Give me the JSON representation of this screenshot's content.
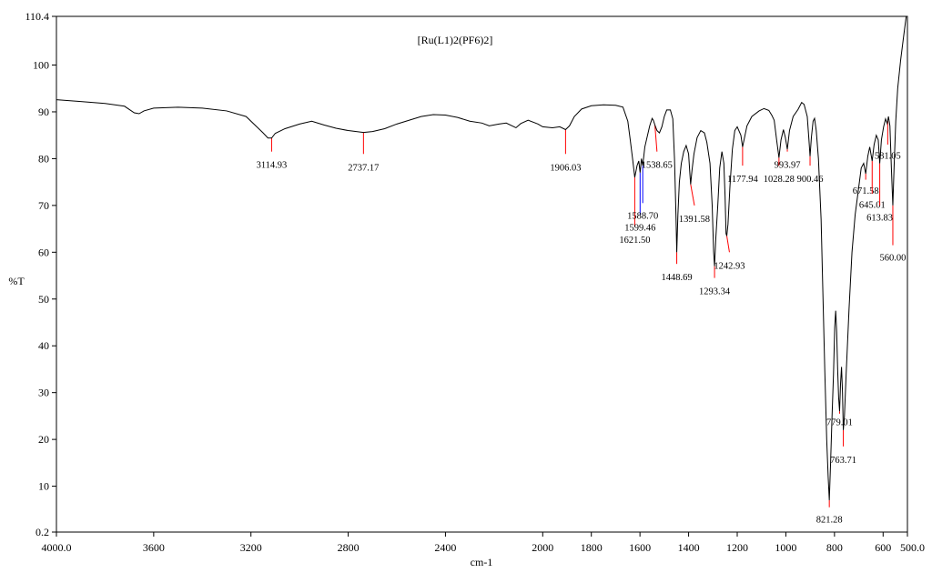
{
  "chart_data": {
    "type": "line",
    "title": "[Ru(L1)2(PF6)2]",
    "xlabel": "cm-1",
    "ylabel": "%T",
    "xlim": [
      4000.0,
      500.0
    ],
    "ylim": [
      0.2,
      110.4
    ],
    "x_reversed": true,
    "grid": false,
    "x_ticks": [
      {
        "value": 4000,
        "label": "4000.0"
      },
      {
        "value": 3600,
        "label": "3600"
      },
      {
        "value": 3200,
        "label": "3200"
      },
      {
        "value": 2800,
        "label": "2800"
      },
      {
        "value": 2400,
        "label": "2400"
      },
      {
        "value": 2000,
        "label": "2000"
      },
      {
        "value": 1800,
        "label": "1800"
      },
      {
        "value": 1600,
        "label": "1600"
      },
      {
        "value": 1400,
        "label": "1400"
      },
      {
        "value": 1200,
        "label": "1200"
      },
      {
        "value": 1000,
        "label": "1000"
      },
      {
        "value": 800,
        "label": "800"
      },
      {
        "value": 600,
        "label": "600"
      },
      {
        "value": 500,
        "label": "500.0"
      }
    ],
    "y_ticks": [
      {
        "value": 0.2,
        "label": "0.2"
      },
      {
        "value": 10,
        "label": "10"
      },
      {
        "value": 20,
        "label": "20"
      },
      {
        "value": 30,
        "label": "30"
      },
      {
        "value": 40,
        "label": "40"
      },
      {
        "value": 50,
        "label": "50"
      },
      {
        "value": 60,
        "label": "60"
      },
      {
        "value": 70,
        "label": "70"
      },
      {
        "value": 80,
        "label": "80"
      },
      {
        "value": 90,
        "label": "90"
      },
      {
        "value": 100,
        "label": "100"
      },
      {
        "value": 110.4,
        "label": "110.4"
      }
    ],
    "series": [
      {
        "color": "#000000",
        "points": [
          [
            4000,
            92.6
          ],
          [
            3900,
            92.2
          ],
          [
            3800,
            91.8
          ],
          [
            3720,
            91.2
          ],
          [
            3680,
            89.8
          ],
          [
            3660,
            89.6
          ],
          [
            3640,
            90.2
          ],
          [
            3600,
            90.8
          ],
          [
            3500,
            91.0
          ],
          [
            3400,
            90.8
          ],
          [
            3300,
            90.2
          ],
          [
            3220,
            89.0
          ],
          [
            3180,
            87.0
          ],
          [
            3150,
            85.5
          ],
          [
            3130,
            84.4
          ],
          [
            3114.93,
            84.4
          ],
          [
            3100,
            85.4
          ],
          [
            3060,
            86.4
          ],
          [
            3000,
            87.4
          ],
          [
            2950,
            88.0
          ],
          [
            2900,
            87.2
          ],
          [
            2850,
            86.5
          ],
          [
            2800,
            86.0
          ],
          [
            2737.17,
            85.6
          ],
          [
            2700,
            85.8
          ],
          [
            2650,
            86.4
          ],
          [
            2600,
            87.4
          ],
          [
            2550,
            88.2
          ],
          [
            2500,
            89.0
          ],
          [
            2450,
            89.4
          ],
          [
            2400,
            89.3
          ],
          [
            2350,
            88.8
          ],
          [
            2300,
            88.0
          ],
          [
            2250,
            87.6
          ],
          [
            2220,
            87.0
          ],
          [
            2180,
            87.4
          ],
          [
            2150,
            87.6
          ],
          [
            2110,
            86.6
          ],
          [
            2090,
            87.5
          ],
          [
            2060,
            88.2
          ],
          [
            2020,
            87.4
          ],
          [
            2000,
            86.8
          ],
          [
            1960,
            86.6
          ],
          [
            1930,
            86.8
          ],
          [
            1906.03,
            86.2
          ],
          [
            1890,
            87.0
          ],
          [
            1870,
            89.0
          ],
          [
            1840,
            90.6
          ],
          [
            1800,
            91.3
          ],
          [
            1750,
            91.5
          ],
          [
            1700,
            91.4
          ],
          [
            1670,
            91.0
          ],
          [
            1650,
            88.0
          ],
          [
            1640,
            84.0
          ],
          [
            1630,
            79.8
          ],
          [
            1621.5,
            76.0
          ],
          [
            1612,
            78.5
          ],
          [
            1605,
            79.5
          ],
          [
            1599.46,
            77.0
          ],
          [
            1594,
            80.0
          ],
          [
            1588.7,
            78.5
          ],
          [
            1580,
            82.5
          ],
          [
            1560,
            87.0
          ],
          [
            1550,
            88.6
          ],
          [
            1545,
            88.2
          ],
          [
            1538.65,
            87.2
          ],
          [
            1530,
            86.0
          ],
          [
            1520,
            85.5
          ],
          [
            1510,
            86.8
          ],
          [
            1500,
            89.0
          ],
          [
            1490,
            90.4
          ],
          [
            1475,
            90.4
          ],
          [
            1465,
            88.5
          ],
          [
            1458,
            80.0
          ],
          [
            1452,
            68.0
          ],
          [
            1448.69,
            60.0
          ],
          [
            1444,
            68.0
          ],
          [
            1438,
            75.0
          ],
          [
            1430,
            79.0
          ],
          [
            1420,
            81.5
          ],
          [
            1410,
            82.8
          ],
          [
            1400,
            81.0
          ],
          [
            1395,
            77.0
          ],
          [
            1391.58,
            74.5
          ],
          [
            1386,
            77.5
          ],
          [
            1378,
            81.0
          ],
          [
            1365,
            84.5
          ],
          [
            1350,
            86.0
          ],
          [
            1335,
            85.5
          ],
          [
            1325,
            83.5
          ],
          [
            1312,
            79.0
          ],
          [
            1303,
            70.0
          ],
          [
            1297,
            60.0
          ],
          [
            1293.34,
            57.0
          ],
          [
            1288,
            63.0
          ],
          [
            1280,
            70.0
          ],
          [
            1272,
            78.0
          ],
          [
            1263,
            81.5
          ],
          [
            1255,
            79.0
          ],
          [
            1250,
            72.0
          ],
          [
            1246,
            64.0
          ],
          [
            1242.93,
            63.5
          ],
          [
            1238,
            66.0
          ],
          [
            1230,
            74.0
          ],
          [
            1220,
            82.0
          ],
          [
            1210,
            86.0
          ],
          [
            1200,
            86.8
          ],
          [
            1185,
            85.0
          ],
          [
            1177.94,
            82.5
          ],
          [
            1172,
            84.0
          ],
          [
            1160,
            87.0
          ],
          [
            1140,
            89.0
          ],
          [
            1110,
            90.2
          ],
          [
            1090,
            90.7
          ],
          [
            1070,
            90.3
          ],
          [
            1058,
            89.3
          ],
          [
            1048,
            88.2
          ],
          [
            1038,
            84.0
          ],
          [
            1028.28,
            80.2
          ],
          [
            1020,
            84.0
          ],
          [
            1010,
            86.2
          ],
          [
            1002,
            84.5
          ],
          [
            993.97,
            82.0
          ],
          [
            985,
            86.0
          ],
          [
            970,
            89.0
          ],
          [
            950,
            90.5
          ],
          [
            935,
            92.0
          ],
          [
            925,
            91.6
          ],
          [
            912,
            89.0
          ],
          [
            905,
            84.0
          ],
          [
            900.46,
            80.5
          ],
          [
            895,
            84.5
          ],
          [
            888,
            88.0
          ],
          [
            882,
            88.6
          ],
          [
            875,
            86.0
          ],
          [
            866,
            80.0
          ],
          [
            855,
            67.0
          ],
          [
            848,
            52.0
          ],
          [
            840,
            35.0
          ],
          [
            832,
            20.0
          ],
          [
            826,
            12.0
          ],
          [
            821.28,
            7.0
          ],
          [
            816,
            15.0
          ],
          [
            810,
            25.0
          ],
          [
            804,
            34.0
          ],
          [
            799,
            44.0
          ],
          [
            795,
            47.5
          ],
          [
            791,
            43.0
          ],
          [
            787,
            35.0
          ],
          [
            783,
            29.0
          ],
          [
            779.01,
            26.0
          ],
          [
            775,
            32.0
          ],
          [
            771,
            35.5
          ],
          [
            767,
            30.0
          ],
          [
            763.71,
            22.0
          ],
          [
            759,
            25.0
          ],
          [
            752,
            34.0
          ],
          [
            740,
            48.0
          ],
          [
            728,
            60.0
          ],
          [
            715,
            68.0
          ],
          [
            700,
            74.0
          ],
          [
            690,
            78.0
          ],
          [
            680,
            79.0
          ],
          [
            671.58,
            76.8
          ],
          [
            663,
            80.5
          ],
          [
            655,
            82.5
          ],
          [
            645.01,
            79.5
          ],
          [
            637,
            83.0
          ],
          [
            628,
            85.0
          ],
          [
            620,
            84.0
          ],
          [
            613.83,
            79.0
          ],
          [
            607,
            84.0
          ],
          [
            598,
            86.8
          ],
          [
            590,
            88.5
          ],
          [
            583,
            87.5
          ],
          [
            578,
            89.0
          ],
          [
            572,
            87.0
          ],
          [
            566,
            78.0
          ],
          [
            560.0,
            70.0
          ],
          [
            555,
            78.0
          ],
          [
            548,
            88.0
          ],
          [
            540,
            95.0
          ],
          [
            528,
            101.0
          ],
          [
            516,
            106.0
          ],
          [
            505,
            110.4
          ]
        ]
      }
    ],
    "peaks": [
      {
        "x": 3114.93,
        "y": 84.4,
        "label": "3114.93",
        "color": "#ff0000",
        "bottom": 81.5,
        "tx": 3114.93,
        "ty": 78.0,
        "anchor": "middle"
      },
      {
        "x": 2737.17,
        "y": 85.6,
        "label": "2737.17",
        "color": "#ff0000",
        "bottom": 81.0,
        "tx": 2737.17,
        "ty": 77.5,
        "anchor": "middle"
      },
      {
        "x": 1906.03,
        "y": 86.2,
        "label": "1906.03",
        "color": "#ff0000",
        "bottom": 81.0,
        "tx": 1906.03,
        "ty": 77.5,
        "anchor": "middle"
      },
      {
        "x": 1621.5,
        "y": 76.0,
        "label": "1621.50",
        "color": "#ff0000",
        "bottom": 65.5,
        "tx": 1621.5,
        "ty": 62.0,
        "anchor": "middle"
      },
      {
        "x": 1599.46,
        "y": 77.0,
        "label": "1599.46",
        "color": "#0000ff",
        "bottom": 68.0,
        "tx": 1599.46,
        "ty": 64.6,
        "anchor": "middle"
      },
      {
        "x": 1588.7,
        "y": 78.5,
        "label": "1588.70",
        "color": "#0000ff",
        "bottom": 70.5,
        "tx": 1588.7,
        "ty": 67.2,
        "anchor": "middle"
      },
      {
        "x": 1538.65,
        "y": 87.2,
        "label": "1538.65",
        "color": "#ff0000",
        "bottom": 81.5,
        "tx": 1530.0,
        "ty": 78.0,
        "anchor": "middle"
      },
      {
        "x": 1448.69,
        "y": 60.0,
        "label": "1448.69",
        "color": "#ff0000",
        "bottom": 57.5,
        "tx": 1448.69,
        "ty": 54.0,
        "anchor": "middle"
      },
      {
        "x": 1391.58,
        "y": 74.5,
        "label": "1391.58",
        "color": "#ff0000",
        "bottom": 70.0,
        "tx": 1376.0,
        "ty": 66.5,
        "anchor": "middle"
      },
      {
        "x": 1293.34,
        "y": 57.0,
        "label": "1293.34",
        "color": "#ff0000",
        "bottom": 54.5,
        "tx": 1293.34,
        "ty": 51.0,
        "anchor": "middle"
      },
      {
        "x": 1242.93,
        "y": 63.5,
        "label": "1242.93",
        "color": "#ff0000",
        "bottom": 60.0,
        "tx": 1232.0,
        "ty": 56.5,
        "anchor": "middle"
      },
      {
        "x": 1177.94,
        "y": 82.5,
        "label": "1177.94",
        "color": "#ff0000",
        "bottom": 78.5,
        "tx": 1177.94,
        "ty": 75.0,
        "anchor": "middle"
      },
      {
        "x": 1028.28,
        "y": 80.2,
        "label": "1028.28",
        "color": "#ff0000",
        "bottom": 78.5,
        "tx": 1028.28,
        "ty": 75.0,
        "anchor": "middle"
      },
      {
        "x": 993.97,
        "y": 82.0,
        "label": "993.97",
        "color": "#ff0000",
        "bottom": 81.5,
        "tx": 993.97,
        "ty": 78.0,
        "anchor": "middle"
      },
      {
        "x": 900.46,
        "y": 80.5,
        "label": "900.46",
        "color": "#ff0000",
        "bottom": 78.5,
        "tx": 900.46,
        "ty": 75.0,
        "anchor": "middle"
      },
      {
        "x": 821.28,
        "y": 7.0,
        "label": "821.28",
        "color": "#ff0000",
        "bottom": 5.5,
        "tx": 821.28,
        "ty": 2.2,
        "anchor": "middle"
      },
      {
        "x": 779.01,
        "y": 26.0,
        "label": "779.01",
        "color": "#ff0000",
        "bottom": 25.5,
        "tx": 779.01,
        "ty": 23.0,
        "anchor": "middle"
      },
      {
        "x": 763.71,
        "y": 22.0,
        "label": "763.71",
        "color": "#ff0000",
        "bottom": 18.5,
        "tx": 763.71,
        "ty": 15.0,
        "anchor": "middle"
      },
      {
        "x": 671.58,
        "y": 76.8,
        "label": "671.58",
        "color": "#ff0000",
        "bottom": 75.5,
        "tx": 671.58,
        "ty": 72.5,
        "anchor": "middle"
      },
      {
        "x": 645.01,
        "y": 79.5,
        "label": "645.01",
        "color": "#ff0000",
        "bottom": 72.5,
        "tx": 645.01,
        "ty": 69.5,
        "anchor": "middle"
      },
      {
        "x": 613.83,
        "y": 79.0,
        "label": "613.83",
        "color": "#ff0000",
        "bottom": 70.0,
        "tx": 613.83,
        "ty": 66.8,
        "anchor": "middle"
      },
      {
        "x": 581.05,
        "y": 88.0,
        "label": "581.05",
        "color": "#ff0000",
        "bottom": 83.0,
        "tx": 581.05,
        "ty": 80.0,
        "anchor": "middle"
      },
      {
        "x": 560.0,
        "y": 70.0,
        "label": "560.00",
        "color": "#ff0000",
        "bottom": 61.5,
        "tx": 560.0,
        "ty": 58.2,
        "anchor": "middle"
      }
    ]
  }
}
